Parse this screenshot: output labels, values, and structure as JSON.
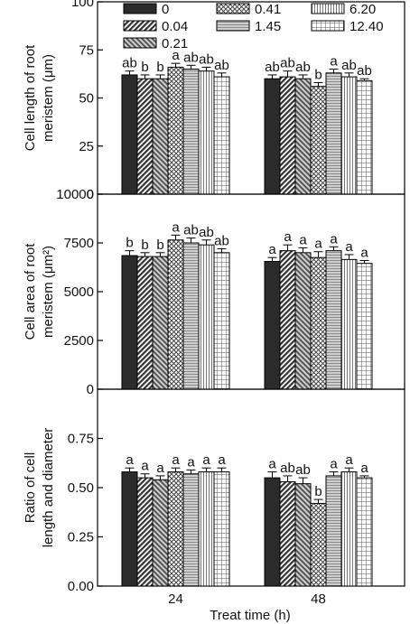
{
  "figure": {
    "xlabel": "Treat time (h)"
  },
  "legend": {
    "entries": [
      "0",
      "0.04",
      "0.21",
      "0.41",
      "1.45",
      "6.20",
      "12.40"
    ]
  },
  "colors": {
    "axis": "#000000",
    "bar_stroke": "#000000",
    "error_bar": "#000000"
  },
  "series_fills": [
    "solid-dark",
    "diag-dense",
    "diag-gray",
    "crosshatch",
    "horizontal-lines",
    "vertical-lines",
    "grid"
  ],
  "chart_data": [
    {
      "type": "bar",
      "categories": [
        "24",
        "48"
      ],
      "ylabel": [
        "Cell length of root",
        "meristem (μm)"
      ],
      "ylim": [
        0,
        100
      ],
      "yticks": [
        "0",
        "25",
        "50",
        "75",
        "100"
      ],
      "series": [
        {
          "name": "0",
          "values": [
            62,
            60
          ],
          "errors": [
            2,
            2
          ],
          "letters": [
            "ab",
            "ab"
          ]
        },
        {
          "name": "0.04",
          "values": [
            60,
            61
          ],
          "errors": [
            2,
            3
          ],
          "letters": [
            "b",
            "ab"
          ]
        },
        {
          "name": "0.21",
          "values": [
            60,
            60
          ],
          "errors": [
            2,
            2
          ],
          "letters": [
            "b",
            "ab"
          ]
        },
        {
          "name": "0.41",
          "values": [
            66,
            56
          ],
          "errors": [
            2,
            2
          ],
          "letters": [
            "a",
            "b"
          ]
        },
        {
          "name": "1.45",
          "values": [
            65,
            63
          ],
          "errors": [
            2,
            2
          ],
          "letters": [
            "ab",
            "a"
          ]
        },
        {
          "name": "6.20",
          "values": [
            64,
            61
          ],
          "errors": [
            2,
            2
          ],
          "letters": [
            "ab",
            "ab"
          ]
        },
        {
          "name": "12.40",
          "values": [
            61,
            59
          ],
          "errors": [
            2,
            1
          ],
          "letters": [
            "ab",
            "ab"
          ]
        }
      ]
    },
    {
      "type": "bar",
      "categories": [
        "24",
        "48"
      ],
      "ylabel": [
        "Cell area of root",
        "meristem (μm²)"
      ],
      "ylim": [
        0,
        10000
      ],
      "yticks": [
        "0",
        "2500",
        "5000",
        "7500",
        "10000"
      ],
      "series": [
        {
          "name": "0",
          "values": [
            6850,
            6550
          ],
          "errors": [
            250,
            200
          ],
          "letters": [
            "b",
            "a"
          ]
        },
        {
          "name": "0.04",
          "values": [
            6800,
            7100
          ],
          "errors": [
            200,
            300
          ],
          "letters": [
            "b",
            "a"
          ]
        },
        {
          "name": "0.21",
          "values": [
            6800,
            7000
          ],
          "errors": [
            200,
            250
          ],
          "letters": [
            "b",
            "a"
          ]
        },
        {
          "name": "0.41",
          "values": [
            7650,
            6750
          ],
          "errors": [
            250,
            300
          ],
          "letters": [
            "a",
            "a"
          ]
        },
        {
          "name": "1.45",
          "values": [
            7500,
            7100
          ],
          "errors": [
            250,
            200
          ],
          "letters": [
            "ab",
            "a"
          ]
        },
        {
          "name": "6.20",
          "values": [
            7400,
            6650
          ],
          "errors": [
            250,
            250
          ],
          "letters": [
            "ab",
            "a"
          ]
        },
        {
          "name": "12.40",
          "values": [
            7000,
            6450
          ],
          "errors": [
            200,
            150
          ],
          "letters": [
            "ab",
            "a"
          ]
        }
      ]
    },
    {
      "type": "bar",
      "categories": [
        "24",
        "48"
      ],
      "ylabel": [
        "Ratio of cell",
        "length and diameter"
      ],
      "ylim": [
        0,
        1.0
      ],
      "yticks": [
        "0.00",
        "0.25",
        "0.50",
        "0.75"
      ],
      "series": [
        {
          "name": "0",
          "values": [
            0.58,
            0.55
          ],
          "errors": [
            0.02,
            0.03
          ],
          "letters": [
            "a",
            "a"
          ]
        },
        {
          "name": "0.04",
          "values": [
            0.55,
            0.53
          ],
          "errors": [
            0.02,
            0.03
          ],
          "letters": [
            "a",
            "ab"
          ]
        },
        {
          "name": "0.21",
          "values": [
            0.54,
            0.52
          ],
          "errors": [
            0.02,
            0.03
          ],
          "letters": [
            "a",
            "ab"
          ]
        },
        {
          "name": "0.41",
          "values": [
            0.58,
            0.42
          ],
          "errors": [
            0.02,
            0.02
          ],
          "letters": [
            "a",
            "b"
          ]
        },
        {
          "name": "1.45",
          "values": [
            0.57,
            0.56
          ],
          "errors": [
            0.02,
            0.02
          ],
          "letters": [
            "a",
            "a"
          ]
        },
        {
          "name": "6.20",
          "values": [
            0.58,
            0.58
          ],
          "errors": [
            0.02,
            0.02
          ],
          "letters": [
            "a",
            "a"
          ]
        },
        {
          "name": "12.40",
          "values": [
            0.58,
            0.55
          ],
          "errors": [
            0.02,
            0.01
          ],
          "letters": [
            "a",
            "a"
          ]
        }
      ]
    }
  ]
}
